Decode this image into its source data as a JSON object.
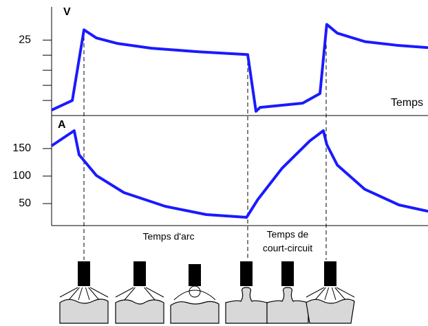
{
  "chart_data": [
    {
      "type": "line",
      "y_label": "V",
      "x_label": "Temps",
      "x": [
        0,
        5.5,
        8.6,
        11.9,
        17.4,
        26.5,
        39.3,
        52.1,
        54.3,
        55.4,
        59.4,
        66.7,
        71.3,
        73.1,
        75.9,
        83.2,
        92.3,
        100
      ],
      "series": [
        {
          "color": "#1a1aff",
          "values": [
            1.8,
            5,
            28.4,
            25.7,
            23.9,
            22.3,
            21.1,
            20.2,
            1.4,
            2.7,
            3.2,
            4.1,
            7.3,
            30.2,
            27.3,
            24.5,
            23.2,
            22.5
          ]
        }
      ],
      "xlim": [
        0,
        100
      ],
      "ylim": [
        0,
        36
      ],
      "yticks": [
        25
      ],
      "minor_yticks": [
        5,
        10,
        15,
        20
      ]
    },
    {
      "type": "line",
      "y_label": "A",
      "x": [
        0,
        6.0,
        7.3,
        11.9,
        19.2,
        30.2,
        41.1,
        51.8,
        54.8,
        61.2,
        68.6,
        72.2,
        73.1,
        75.9,
        83.2,
        92.3,
        100
      ],
      "series": [
        {
          "color": "#1a1aff",
          "values": [
            155,
            182.5,
            138.75,
            101,
            70,
            45,
            30,
            25,
            57.5,
            114,
            164,
            182.5,
            157.5,
            120,
            76,
            47.5,
            36
          ]
        }
      ],
      "xlim": [
        0,
        100
      ],
      "ylim": [
        10,
        210
      ],
      "yticks": [
        50,
        100,
        150
      ],
      "annotations": [
        "Temps d'arc",
        "Temps de",
        "court-circuit"
      ]
    }
  ]
}
